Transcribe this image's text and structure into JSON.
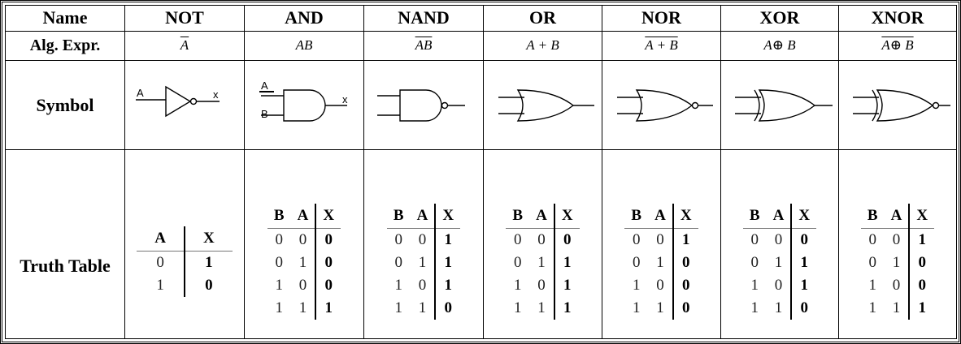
{
  "rows": {
    "name": "Name",
    "expr": "Alg. Expr.",
    "symbol": "Symbol",
    "truth_table": "Truth Table"
  },
  "gates": [
    {
      "name": "NOT",
      "expr": "A",
      "expr_overline": true,
      "symbol": "not",
      "input_labels": [
        "A"
      ],
      "output_label": "x",
      "truth": {
        "headers": [
          "A",
          "X"
        ],
        "rows": [
          [
            "0",
            "1"
          ],
          [
            "1",
            "0"
          ]
        ]
      }
    },
    {
      "name": "AND",
      "expr": "AB",
      "expr_overline": false,
      "symbol": "and",
      "input_labels": [
        "A",
        "B"
      ],
      "output_label": "x",
      "truth": {
        "headers": [
          "B",
          "A",
          "X"
        ],
        "rows": [
          [
            "0",
            "0",
            "0"
          ],
          [
            "0",
            "1",
            "0"
          ],
          [
            "1",
            "0",
            "0"
          ],
          [
            "1",
            "1",
            "1"
          ]
        ]
      }
    },
    {
      "name": "NAND",
      "expr": "AB",
      "expr_overline": true,
      "symbol": "nand",
      "truth": {
        "headers": [
          "B",
          "A",
          "X"
        ],
        "rows": [
          [
            "0",
            "0",
            "1"
          ],
          [
            "0",
            "1",
            "1"
          ],
          [
            "1",
            "0",
            "1"
          ],
          [
            "1",
            "1",
            "0"
          ]
        ]
      }
    },
    {
      "name": "OR",
      "expr": "A + B",
      "expr_overline": false,
      "symbol": "or",
      "truth": {
        "headers": [
          "B",
          "A",
          "X"
        ],
        "rows": [
          [
            "0",
            "0",
            "0"
          ],
          [
            "0",
            "1",
            "1"
          ],
          [
            "1",
            "0",
            "1"
          ],
          [
            "1",
            "1",
            "1"
          ]
        ]
      }
    },
    {
      "name": "NOR",
      "expr": "A + B",
      "expr_overline": true,
      "symbol": "nor",
      "truth": {
        "headers": [
          "B",
          "A",
          "X"
        ],
        "rows": [
          [
            "0",
            "0",
            "1"
          ],
          [
            "0",
            "1",
            "0"
          ],
          [
            "1",
            "0",
            "0"
          ],
          [
            "1",
            "1",
            "0"
          ]
        ]
      }
    },
    {
      "name": "XOR",
      "expr": "A⊕ B",
      "expr_overline": false,
      "symbol": "xor",
      "truth": {
        "headers": [
          "B",
          "A",
          "X"
        ],
        "rows": [
          [
            "0",
            "0",
            "0"
          ],
          [
            "0",
            "1",
            "1"
          ],
          [
            "1",
            "0",
            "1"
          ],
          [
            "1",
            "1",
            "0"
          ]
        ]
      }
    },
    {
      "name": "XNOR",
      "expr": "A⊕ B",
      "expr_overline": true,
      "symbol": "xnor",
      "truth": {
        "headers": [
          "B",
          "A",
          "X"
        ],
        "rows": [
          [
            "0",
            "0",
            "1"
          ],
          [
            "0",
            "1",
            "0"
          ],
          [
            "1",
            "0",
            "0"
          ],
          [
            "1",
            "1",
            "1"
          ]
        ]
      }
    }
  ]
}
